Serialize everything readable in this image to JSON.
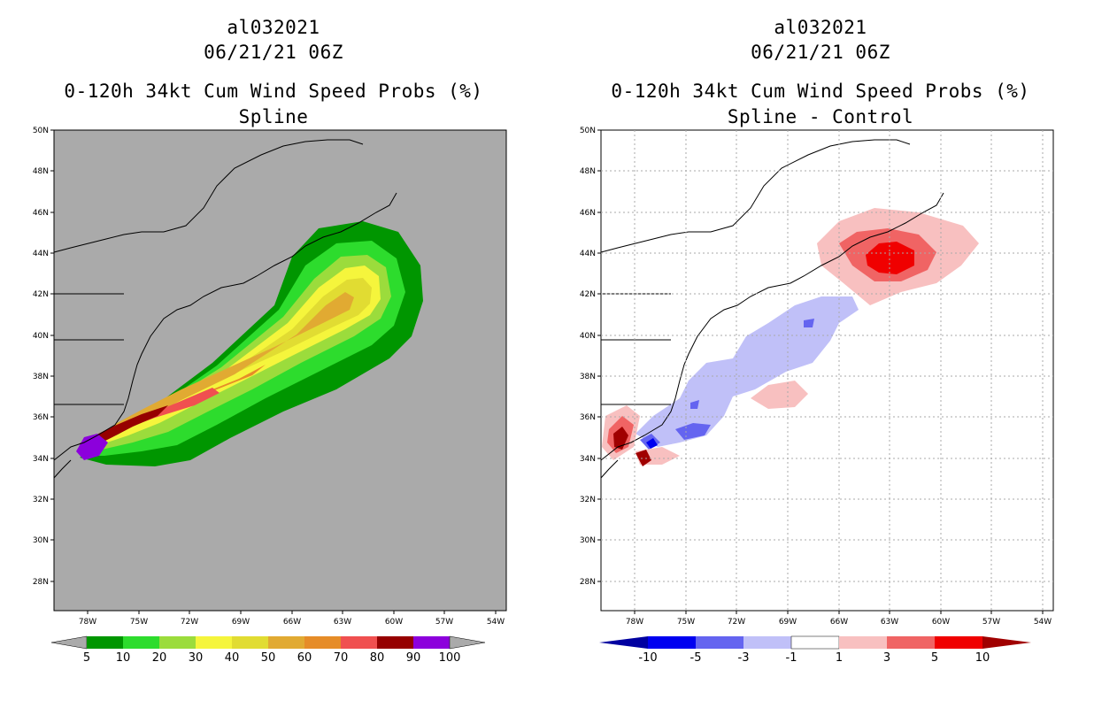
{
  "left": {
    "storm_id": "al032021",
    "datetime": "06/21/21 06Z",
    "product": "0-120h 34kt Cum Wind Speed Probs (%)",
    "subtitle": "Spline",
    "colorbar": {
      "labels": [
        "5",
        "10",
        "20",
        "30",
        "40",
        "50",
        "60",
        "70",
        "80",
        "90",
        "100"
      ],
      "colors": [
        "#009600",
        "#2ddc2d",
        "#9bdc3c",
        "#f5f53c",
        "#e1dc32",
        "#e1aa32",
        "#e68c28",
        "#f05050",
        "#960000",
        "#8c00dc"
      ]
    }
  },
  "right": {
    "storm_id": "al032021",
    "datetime": "06/21/21 06Z",
    "product": "0-120h 34kt Cum Wind Speed Probs (%)",
    "subtitle": "Spline - Control",
    "colorbar": {
      "labels": [
        "-10",
        "-5",
        "-3",
        "-1",
        "1",
        "3",
        "5",
        "10"
      ],
      "colors": [
        "#0000a0",
        "#0000f0",
        "#6464f0",
        "#c0c0f8",
        "#ffffff",
        "#f8c0c0",
        "#f06464",
        "#f00000",
        "#a00000"
      ]
    }
  },
  "axes": {
    "lat_labels": [
      "50N",
      "48N",
      "46N",
      "44N",
      "42N",
      "40N",
      "38N",
      "36N",
      "34N",
      "32N",
      "30N",
      "28N"
    ],
    "lon_labels": [
      "78W",
      "75W",
      "72W",
      "69W",
      "66W",
      "63W",
      "60W",
      "57W",
      "54W"
    ]
  },
  "colors": {
    "land_bg": "#aaaaaa",
    "plot_bg": "#ffffff",
    "coast": "#000000"
  }
}
